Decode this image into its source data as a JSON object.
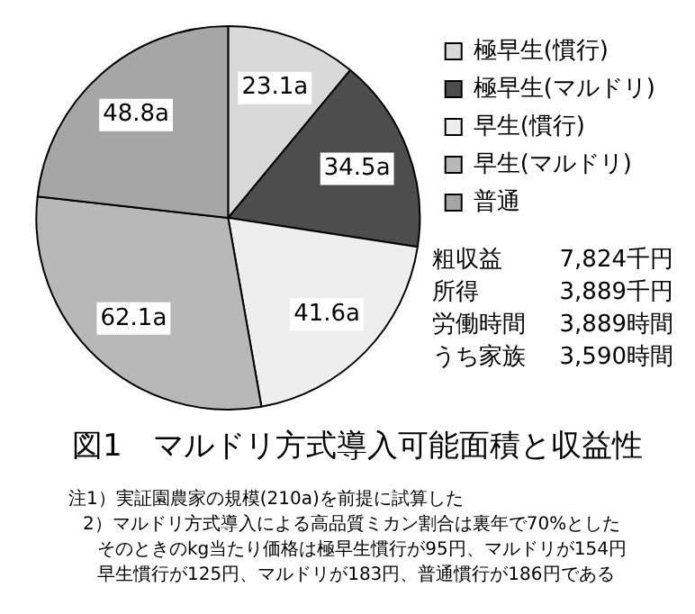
{
  "chart_data": {
    "type": "pie",
    "title": "図1　マルドリ方式導入可能面積と収益性",
    "categories": [
      "極早生(慣行)",
      "極早生(マルドリ)",
      "早生(慣行)",
      "早生(マルドリ)",
      "普通"
    ],
    "values": [
      23.1,
      34.5,
      41.6,
      62.1,
      48.8
    ],
    "value_labels": [
      "23.1a",
      "34.5a",
      "41.6a",
      "62.1a",
      "48.8a"
    ],
    "colors": [
      "#d9d9d9",
      "#4d4d4d",
      "#eeeeee",
      "#b8b8b8",
      "#a6a6a6"
    ],
    "legend": "top right",
    "annotations": [
      "粗収益 7,824千円",
      "所得 3,889千円",
      "労働時間 3,889時間",
      "うち家族 3,590時間",
      "注1）実証園農家の規模(210a)を前提に試算した",
      "2）マルドリ方式導入による高品質ミカン割合は裏年で70%とした",
      "そのときのkg当たり価格は極早生慣行が95円、マルドリが154円",
      "早生慣行が125円、マルドリが183円、普通慣行が186円である"
    ]
  }
}
